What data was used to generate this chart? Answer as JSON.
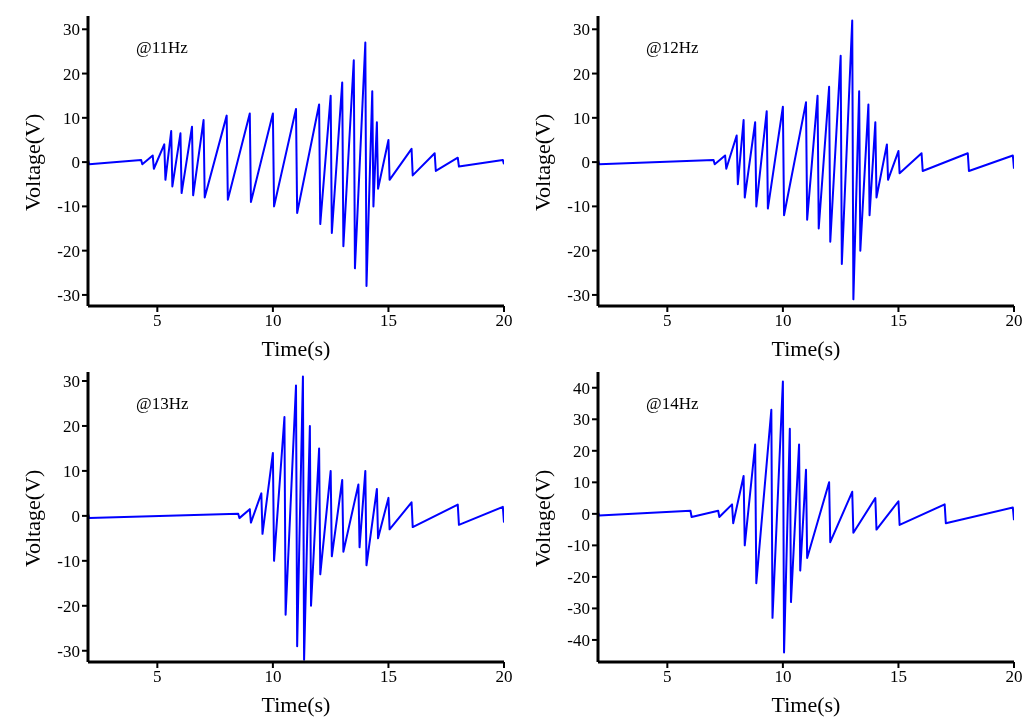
{
  "chart_data": [
    {
      "type": "line",
      "xlabel": "Time(s)",
      "ylabel": "Voltage(V)",
      "annotations": [
        "@11Hz"
      ],
      "xlim": [
        2,
        20
      ],
      "xticks": [
        5,
        10,
        15,
        20
      ],
      "ylim": [
        -32.5,
        33
      ],
      "yticks": [
        -30,
        -20,
        -10,
        0,
        10,
        20,
        30
      ],
      "grid": false,
      "marker": "none",
      "line_style": "solid",
      "x": [
        2,
        2.05,
        4.3,
        4.35,
        4.8,
        4.85,
        5.3,
        5.35,
        5.6,
        5.65,
        6,
        6.05,
        6.5,
        6.55,
        7,
        7.05,
        8,
        8.05,
        9,
        9.05,
        10,
        10.05,
        11,
        11.05,
        12,
        12.05,
        12.5,
        12.55,
        13,
        13.05,
        13.5,
        13.55,
        14,
        14.05,
        14.3,
        14.35,
        14.5,
        14.55,
        15,
        15.05,
        16,
        16.05,
        17,
        17.05,
        18,
        18.05,
        19.95,
        20
      ],
      "series": [
        {
          "color": "#0000ff",
          "values": [
            0.5,
            -0.5,
            0.5,
            -0.5,
            1.5,
            -1.5,
            4,
            -4,
            7,
            -5.5,
            6.5,
            -7,
            8,
            -7.5,
            9.5,
            -8,
            10.5,
            -8.5,
            11,
            -9,
            11,
            -10,
            12,
            -11.5,
            13,
            -14,
            15,
            -16,
            18,
            -19,
            23,
            -24,
            27,
            -28,
            16,
            -10,
            9,
            -6,
            5,
            -4,
            3,
            -3,
            2,
            -2,
            1,
            -1,
            0.5,
            -0.5
          ]
        }
      ]
    },
    {
      "type": "line",
      "xlabel": "Time(s)",
      "ylabel": "Voltage(V)",
      "annotations": [
        "@12Hz"
      ],
      "xlim": [
        2,
        20
      ],
      "xticks": [
        5,
        10,
        15,
        20
      ],
      "ylim": [
        -32.5,
        33
      ],
      "yticks": [
        -30,
        -20,
        -10,
        0,
        10,
        20,
        30
      ],
      "grid": false,
      "marker": "none",
      "line_style": "solid",
      "x": [
        2,
        2.05,
        7,
        7.05,
        7.5,
        7.55,
        8,
        8.05,
        8.3,
        8.35,
        8.8,
        8.85,
        9.3,
        9.35,
        10,
        10.05,
        11,
        11.05,
        11.5,
        11.55,
        12,
        12.05,
        12.5,
        12.55,
        13,
        13.05,
        13.3,
        13.35,
        13.7,
        13.75,
        14,
        14.05,
        14.5,
        14.55,
        15,
        15.05,
        16,
        16.05,
        18,
        18.05,
        19.95,
        20
      ],
      "series": [
        {
          "color": "#0000ff",
          "values": [
            0.5,
            -0.5,
            0.5,
            -0.5,
            1.5,
            -1.5,
            6,
            -5,
            9.5,
            -8,
            9,
            -10,
            11.5,
            -10.5,
            12.5,
            -12,
            13.5,
            -13,
            15,
            -15,
            17,
            -18,
            24,
            -23,
            32,
            -31,
            16,
            -20,
            13,
            -12,
            9,
            -8,
            4,
            -4,
            2.5,
            -2.5,
            2,
            -2,
            2,
            -2,
            1.5,
            -1.5
          ]
        }
      ]
    },
    {
      "type": "line",
      "xlabel": "Time(s)",
      "ylabel": "Voltage(V)",
      "annotations": [
        "@13Hz"
      ],
      "xlim": [
        2,
        20
      ],
      "xticks": [
        5,
        10,
        15,
        20
      ],
      "ylim": [
        -32.5,
        32
      ],
      "yticks": [
        -30,
        -20,
        -10,
        0,
        10,
        20,
        30
      ],
      "grid": false,
      "marker": "none",
      "line_style": "solid",
      "x": [
        2,
        2.05,
        8.5,
        8.55,
        9,
        9.05,
        9.5,
        9.55,
        10,
        10.05,
        10.5,
        10.55,
        11,
        11.05,
        11.3,
        11.35,
        11.6,
        11.65,
        12,
        12.05,
        12.5,
        12.55,
        13,
        13.05,
        13.7,
        13.75,
        14,
        14.05,
        14.5,
        14.55,
        15,
        15.05,
        16,
        16.05,
        18,
        18.05,
        19.95,
        20
      ],
      "series": [
        {
          "color": "#0000ff",
          "values": [
            0.5,
            -0.5,
            0.5,
            -0.5,
            1.5,
            -1.5,
            5,
            -4,
            14,
            -10,
            22,
            -22,
            29,
            -29,
            31,
            -32,
            20,
            -20,
            15,
            -13,
            10,
            -9,
            8,
            -8,
            7,
            -7,
            10,
            -11,
            6,
            -5,
            4,
            -3,
            3,
            -2.5,
            2.5,
            -2,
            2,
            -1.5
          ]
        }
      ]
    },
    {
      "type": "line",
      "xlabel": "Time(s)",
      "ylabel": "Voltage(V)",
      "annotations": [
        "@14Hz"
      ],
      "xlim": [
        2,
        20
      ],
      "xticks": [
        5,
        10,
        15,
        20
      ],
      "ylim": [
        -47,
        45
      ],
      "yticks": [
        -40,
        -30,
        -20,
        -10,
        0,
        10,
        20,
        30,
        40
      ],
      "grid": false,
      "marker": "none",
      "line_style": "solid",
      "x": [
        2,
        2.05,
        6,
        6.05,
        7.2,
        7.25,
        7.8,
        7.85,
        8.3,
        8.35,
        8.8,
        8.85,
        9.5,
        9.55,
        10,
        10.05,
        10.3,
        10.35,
        10.7,
        10.75,
        11,
        11.05,
        12,
        12.05,
        13,
        13.05,
        14,
        14.05,
        15,
        15.05,
        17,
        17.05,
        19.95,
        20
      ],
      "series": [
        {
          "color": "#0000ff",
          "values": [
            0.5,
            -0.5,
            1,
            -1,
            1,
            -1,
            3,
            -3,
            12,
            -10,
            22,
            -22,
            33,
            -33,
            42,
            -44,
            27,
            -28,
            22,
            -18,
            14,
            -14,
            10,
            -9,
            7,
            -6,
            5,
            -5,
            4,
            -3.5,
            3,
            -3,
            2,
            -2
          ]
        }
      ]
    }
  ]
}
